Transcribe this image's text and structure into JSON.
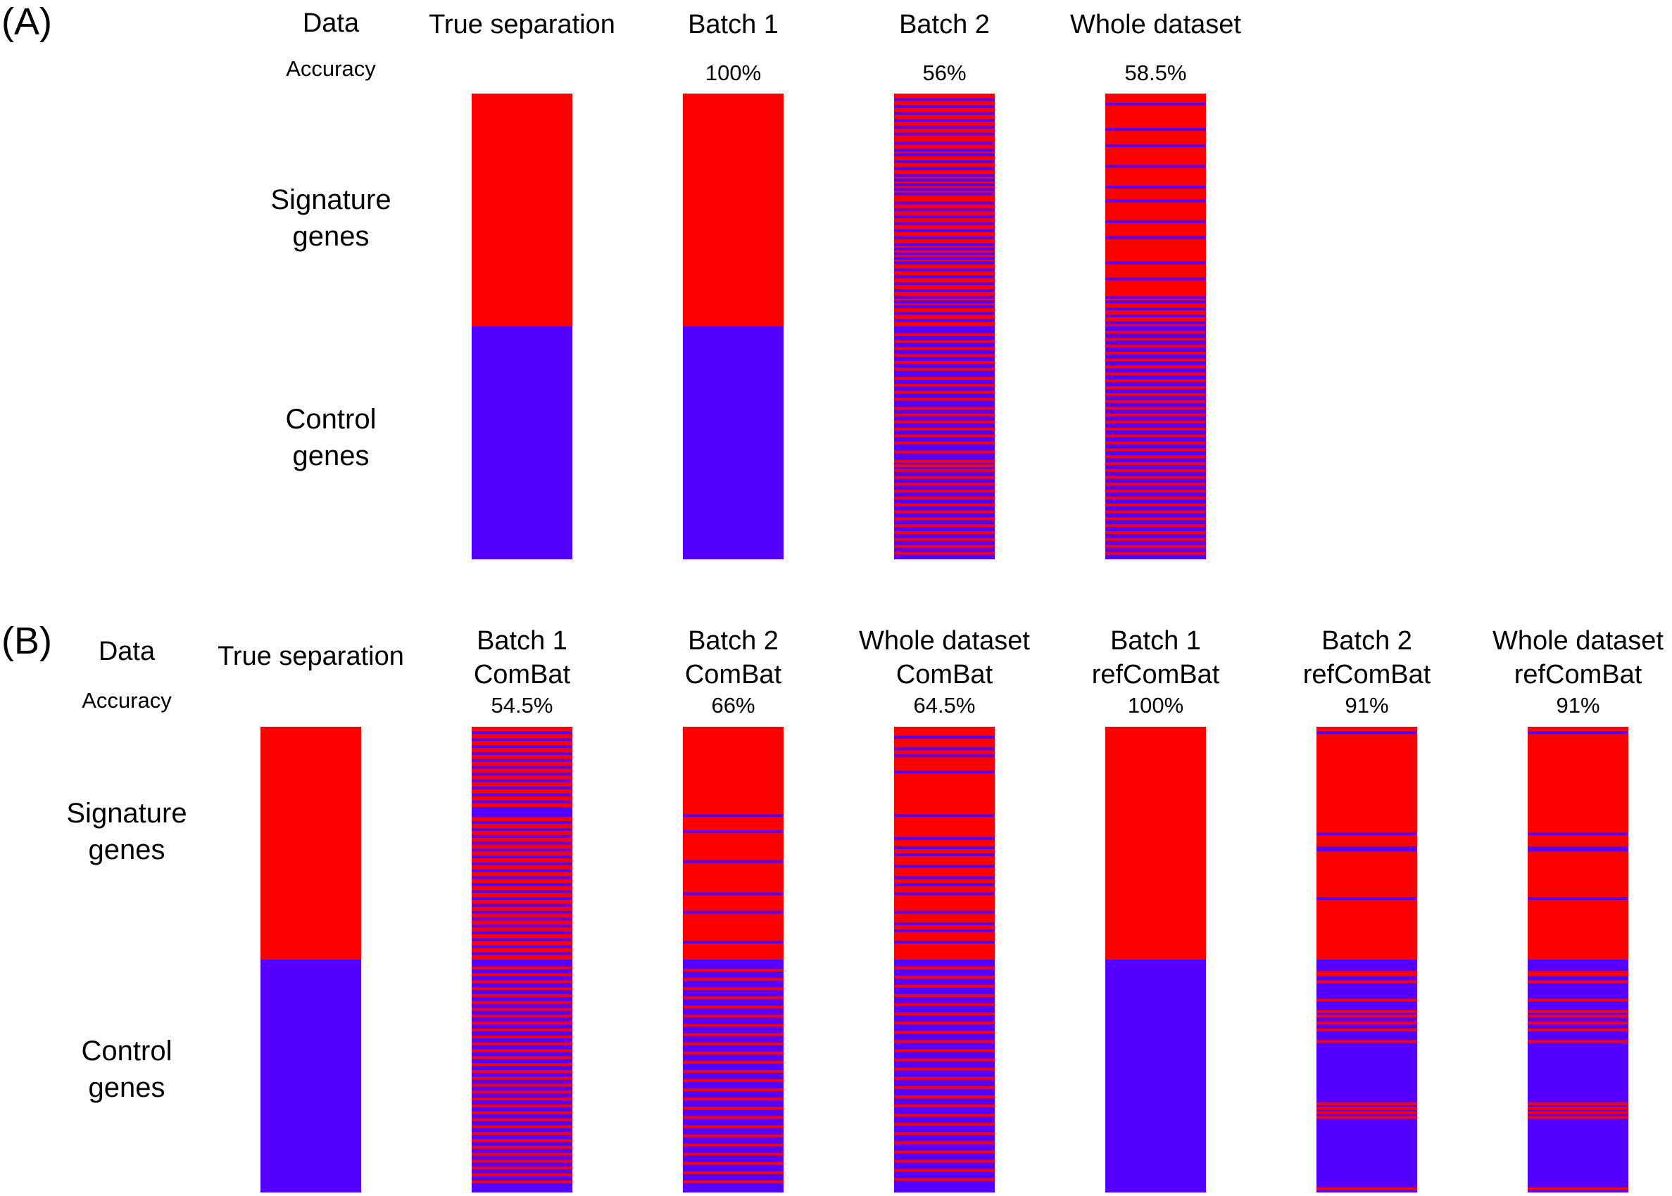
{
  "colors": {
    "signature": "#ff0000",
    "control": "#5500ff"
  },
  "panels": [
    {
      "letter": "(A)",
      "data_label": "Data",
      "accuracy_label": "Accuracy",
      "signature_label": [
        "Signature",
        "genes"
      ],
      "control_label": [
        "Control",
        "genes"
      ],
      "columns": [
        {
          "title": [
            "True separation"
          ],
          "accuracy": "",
          "signature_blue_rows": [],
          "control_red_rows": []
        },
        {
          "title": [
            "Batch 1"
          ],
          "accuracy": "100%",
          "signature_blue_rows": [],
          "control_red_rows": []
        },
        {
          "title": [
            "Batch 2"
          ],
          "accuracy": "56%",
          "signature_blue_rows": [
            2,
            5,
            8,
            11,
            14,
            17,
            21,
            24,
            26,
            29,
            32,
            35,
            37,
            39,
            41,
            43,
            47,
            50,
            53,
            56,
            59,
            62,
            65,
            67,
            69,
            71,
            73,
            76,
            79,
            82,
            85,
            88,
            90,
            92,
            95,
            98
          ],
          "control_red_rows": [
            3,
            6,
            9,
            12,
            15,
            18,
            22,
            25,
            28,
            31,
            35,
            38,
            41,
            44,
            47,
            50,
            54,
            58,
            60,
            62,
            65,
            68,
            71,
            74,
            77,
            80,
            83,
            86,
            89,
            92,
            95,
            98
          ]
        },
        {
          "title": [
            "Whole dataset"
          ],
          "accuracy": "58.5%",
          "signature_blue_rows": [
            4,
            15,
            22,
            31,
            40,
            46,
            55,
            62,
            73,
            80,
            88,
            90,
            93,
            96,
            99
          ],
          "control_red_rows": [
            2,
            5,
            8,
            11,
            14,
            17,
            20,
            23,
            26,
            29,
            32,
            35,
            38,
            41,
            44,
            47,
            50,
            53,
            56,
            59,
            62,
            65,
            68,
            71,
            74,
            77,
            80,
            83,
            86,
            89,
            92,
            95,
            98
          ]
        }
      ]
    },
    {
      "letter": "(B)",
      "data_label": "Data",
      "accuracy_label": "Accuracy",
      "signature_label": [
        "Signature",
        "genes"
      ],
      "control_label": [
        "Control",
        "genes"
      ],
      "columns": [
        {
          "title": [
            "True separation"
          ],
          "accuracy": "",
          "signature_blue_rows": [],
          "control_red_rows": []
        },
        {
          "title": [
            "Batch 1",
            "ComBat"
          ],
          "accuracy": "54.5%",
          "signature_blue_rows": [
            2,
            5,
            8,
            11,
            14,
            17,
            20,
            23,
            26,
            29,
            32,
            35,
            36,
            37,
            38,
            41,
            44,
            47,
            50,
            53,
            56,
            59,
            62,
            65,
            68,
            71,
            74,
            77,
            80,
            83,
            86,
            89,
            92,
            95,
            98
          ],
          "control_red_rows": [
            3,
            6,
            9,
            12,
            15,
            18,
            21,
            24,
            27,
            30,
            33,
            36,
            39,
            42,
            45,
            48,
            51,
            54,
            57,
            60,
            63,
            66,
            69,
            72,
            75,
            78,
            81,
            84,
            87,
            90,
            93,
            96
          ]
        },
        {
          "title": [
            "Batch 2",
            "ComBat"
          ],
          "accuracy": "66%",
          "signature_blue_rows": [
            38,
            45,
            58,
            72,
            80,
            93
          ],
          "control_red_rows": [
            4,
            8,
            12,
            16,
            20,
            24,
            28,
            32,
            36,
            40,
            44,
            48,
            52,
            56,
            60,
            64,
            68,
            72,
            76,
            80,
            84,
            88,
            92,
            96
          ]
        },
        {
          "title": [
            "Whole dataset",
            "ComBat"
          ],
          "accuracy": "64.5%",
          "signature_blue_rows": [
            4,
            9,
            12,
            19,
            38,
            48,
            52,
            55,
            60,
            65,
            68,
            72,
            80,
            85,
            88,
            93
          ],
          "control_red_rows": [
            3,
            7,
            11,
            15,
            19,
            23,
            27,
            31,
            35,
            39,
            43,
            47,
            51,
            55,
            59,
            63,
            67,
            71,
            75,
            79,
            83,
            87,
            91,
            95
          ]
        },
        {
          "title": [
            "Batch 1",
            "refComBat"
          ],
          "accuracy": "100%",
          "signature_blue_rows": [],
          "control_red_rows": []
        },
        {
          "title": [
            "Batch 2",
            "refComBat"
          ],
          "accuracy": "91%",
          "signature_blue_rows": [
            2,
            46,
            52,
            53,
            74
          ],
          "control_red_rows": [
            5,
            6,
            9,
            17,
            22,
            24,
            27,
            30,
            35,
            62,
            64,
            66,
            68,
            99
          ]
        },
        {
          "title": [
            "Whole dataset",
            "refComBat"
          ],
          "accuracy": "91%",
          "signature_blue_rows": [
            2,
            46,
            52,
            53,
            74
          ],
          "control_red_rows": [
            5,
            6,
            9,
            17,
            22,
            24,
            27,
            30,
            35,
            62,
            64,
            66,
            68,
            99
          ]
        }
      ]
    }
  ]
}
